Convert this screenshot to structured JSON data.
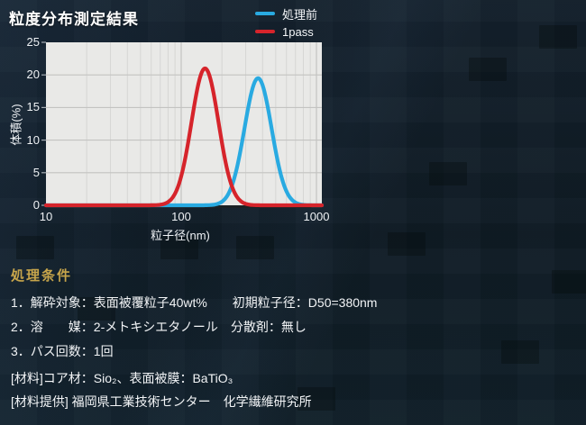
{
  "slide": {
    "title": "粒度分布測定結果",
    "accent_heading_color": "#c7a54b",
    "background_color": "#101c26"
  },
  "legend": {
    "position": "top-right",
    "items": [
      {
        "label": "処理前",
        "color": "#29aae1"
      },
      {
        "label": "1pass",
        "color": "#d6242b"
      }
    ]
  },
  "chart_data": {
    "type": "line",
    "title": "",
    "xlabel": "粒子径(nm)",
    "ylabel": "体積(%)",
    "x_scale": "log",
    "xlim": [
      10,
      1000
    ],
    "ylim": [
      0,
      25
    ],
    "x_ticks": [
      10,
      100,
      1000
    ],
    "y_ticks": [
      0,
      5,
      10,
      15,
      20,
      25
    ],
    "grid": true,
    "plot_background": "#e9e9e7",
    "grid_minor_color": "#d6d6d4",
    "grid_major_color": "#c3c3c1",
    "series": [
      {
        "name": "処理前",
        "color": "#29aae1",
        "shape": "log-gaussian",
        "peak_x_nm": 370,
        "peak_y_percent": 19.5,
        "sigma_log10": 0.1,
        "points": [
          [
            200,
            0
          ],
          [
            240,
            1.5
          ],
          [
            280,
            6
          ],
          [
            320,
            13
          ],
          [
            370,
            19.5
          ],
          [
            430,
            15
          ],
          [
            500,
            8
          ],
          [
            580,
            2.5
          ],
          [
            690,
            0
          ]
        ]
      },
      {
        "name": "1pass",
        "color": "#d6242b",
        "shape": "log-gaussian",
        "peak_x_nm": 150,
        "peak_y_percent": 21,
        "sigma_log10": 0.1,
        "points": [
          [
            85,
            0
          ],
          [
            100,
            1.5
          ],
          [
            115,
            6
          ],
          [
            130,
            13
          ],
          [
            150,
            21
          ],
          [
            175,
            15
          ],
          [
            200,
            8
          ],
          [
            235,
            2.5
          ],
          [
            280,
            0
          ]
        ]
      }
    ]
  },
  "conditions": {
    "heading": "処理条件",
    "items": [
      "1．解砕対象：表面被覆粒子40wt%　　初期粒子径：D50=380nm",
      "2．溶　　媒：2-メトキシエタノール　分散剤：無し",
      "3．パス回数：1回"
    ]
  },
  "materials": {
    "lines": [
      "[材料]コア材：Sio₂、表面被膜：BaTiO₃",
      "[材料提供] 福岡県工業技術センター　化学繊維研究所"
    ]
  }
}
